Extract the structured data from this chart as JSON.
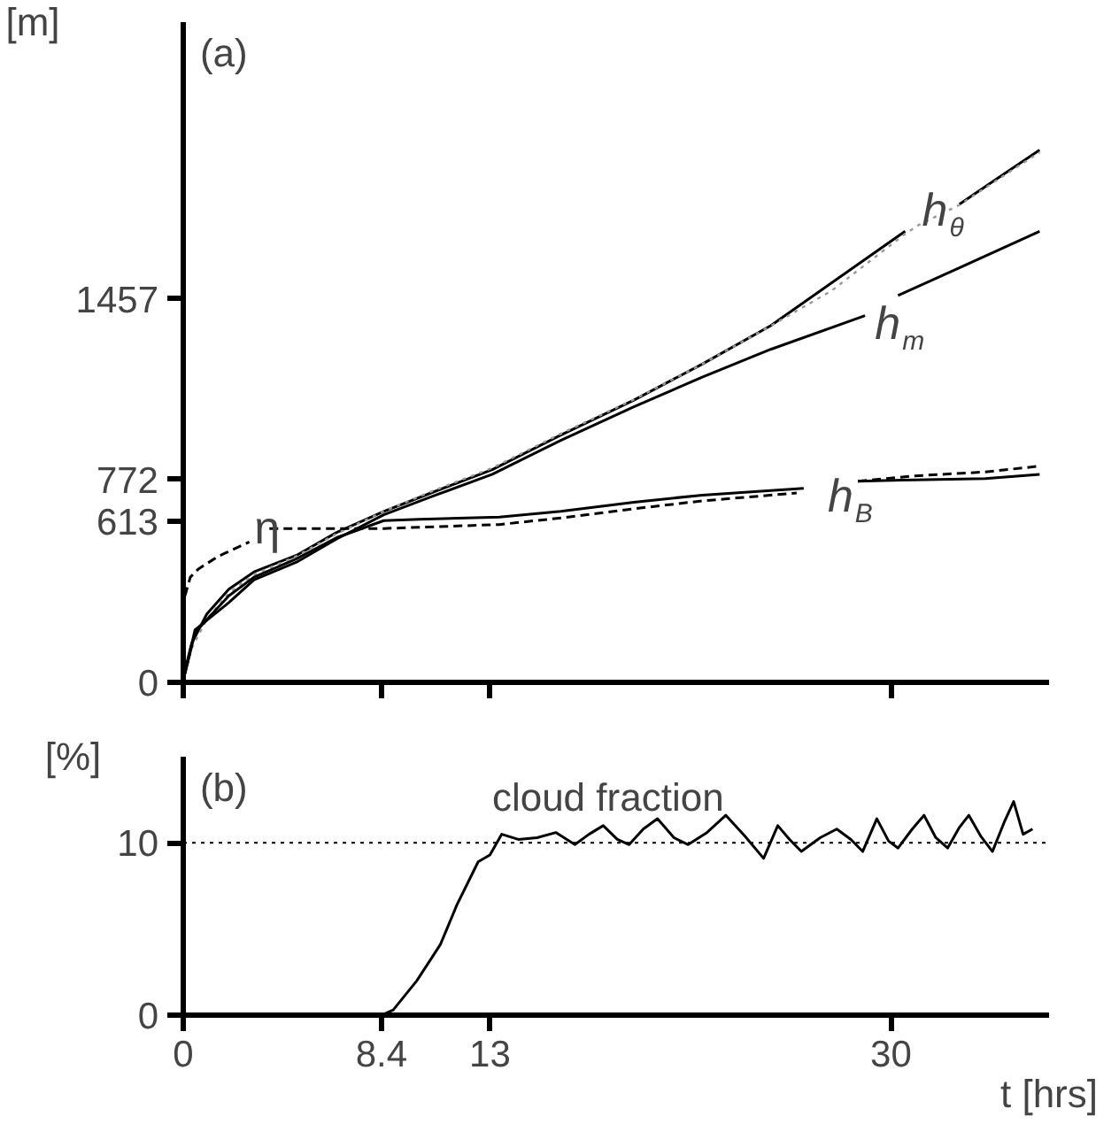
{
  "chart_data": [
    {
      "type": "line",
      "title": "(a)",
      "ylabel": "[m]",
      "xlim": [
        0,
        36.7
      ],
      "ylim": [
        0,
        2510
      ],
      "xticks": [
        {
          "value": 0,
          "label": null
        },
        {
          "value": 8.4,
          "label": null
        },
        {
          "value": 13,
          "label": null
        },
        {
          "value": 30,
          "label": null
        }
      ],
      "yticks": [
        0,
        613,
        772,
        1457
      ],
      "tick_labels": "y",
      "grid": false,
      "series": [
        {
          "color": "#000000",
          "line_style": "solid",
          "x": [
            0,
            0.36,
            1.0,
            1.93,
            3,
            4.8,
            6.5,
            8.5,
            10.5,
            13.1,
            16,
            19.1,
            22,
            24.9,
            27.5,
            30.6,
            31.2,
            32.9,
            34.5,
            36.3
          ],
          "values": [
            20,
            149,
            260,
            354,
            420,
            483,
            570,
            650,
            720,
            809,
            940,
            1073,
            1210,
            1356,
            1520,
            1715,
            null,
            1818,
            1915,
            2024
          ]
        },
        {
          "color": "#999999",
          "line_style": "dotted",
          "x": [
            0,
            0.36,
            1.0,
            1.93,
            3,
            4.8,
            6.5,
            8.5,
            10.5,
            13.1,
            16,
            19.1,
            22,
            24.9,
            27.5,
            30.6,
            31.2,
            32.9,
            34.5,
            36.3
          ],
          "values": [
            0,
            130,
            240,
            340,
            410,
            480,
            565,
            650,
            725,
            815,
            945,
            1075,
            1210,
            1355,
            1490,
            1705,
            1740,
            1815,
            1910,
            2015
          ]
        },
        {
          "color": "#000000",
          "line_style": "solid",
          "x": [
            0.07,
            0.5,
            1.93,
            3,
            4.8,
            6.5,
            8.5,
            10.5,
            13.1,
            16,
            19.1,
            22,
            24.9,
            28.9,
            29.6,
            30.3,
            33,
            36.3
          ],
          "values": [
            33,
            200,
            303,
            390,
            457,
            545,
            637,
            705,
            791,
            920,
            1048,
            1160,
            1266,
            1394,
            null,
            1471,
            1580,
            1715
          ]
        },
        {
          "color": "#000000",
          "line_style": "solid",
          "x": [
            0.07,
            0.5,
            1.93,
            3,
            4.8,
            6.5,
            8.5,
            10,
            13.4,
            16,
            19.1,
            22,
            26.3,
            27.3,
            28.6,
            31,
            34,
            36.3
          ],
          "values": [
            33,
            190,
            329,
            400,
            470,
            550,
            615,
            620,
            628,
            650,
            685,
            712,
            738,
            null,
            765,
            770,
            775,
            791
          ]
        },
        {
          "color": "#000000",
          "line_style": "dashed",
          "x": [
            0.07,
            0.3,
            0.64,
            1.5,
            2.8,
            3.2,
            3.65,
            6,
            8.5,
            13.4,
            16,
            19.1,
            22,
            26,
            27.3,
            28.6,
            31,
            34,
            36.3
          ],
          "values": [
            329,
            400,
            431,
            480,
            534,
            null,
            585,
            585,
            585,
            600,
            625,
            660,
            690,
            720,
            null,
            765,
            785,
            800,
            822
          ]
        }
      ],
      "annotations": [
        {
          "text": "h$_{θ}$",
          "x": 30.6,
          "y": 1715
        },
        {
          "text": "h$_{m}$",
          "x": 28.9,
          "y": 1394
        },
        {
          "text": "h$_{B}$",
          "x": 26.3,
          "y": 738
        },
        {
          "text": "η",
          "x": 2.8,
          "y": 534
        }
      ]
    },
    {
      "type": "line",
      "title": "(b)",
      "ylabel": "[%]",
      "xlabel": "t [hrs]",
      "xlim": [
        0,
        36.7
      ],
      "ylim": [
        0,
        15
      ],
      "xticks": [
        0,
        8.4,
        13,
        30
      ],
      "yticks": [
        0,
        10
      ],
      "grid": false,
      "series": [
        {
          "color": "#000000",
          "line_style": "solid",
          "x": [
            8.4,
            8.9,
            9.9,
            10.9,
            11.6,
            12.5,
            13,
            13.5,
            14.2,
            15,
            15.8,
            16.6,
            17.2,
            17.8,
            18.4,
            18.9,
            19.5,
            20.1,
            20.8,
            21.4,
            22.2,
            23,
            23.8,
            24.6,
            25.2,
            25.7,
            26.2,
            27,
            27.7,
            28.3,
            28.8,
            29.4,
            29.9,
            30.3,
            30.9,
            31.4,
            31.9,
            32.4,
            32.9,
            33.3,
            33.8,
            34.3,
            34.8,
            35.2,
            35.6,
            36
          ],
          "values": [
            0,
            0.3,
            2,
            4.1,
            6.4,
            8.9,
            9.3,
            10.5,
            10.2,
            10.3,
            10.6,
            9.9,
            10.5,
            11,
            10.2,
            9.9,
            10.8,
            11.4,
            10.3,
            9.9,
            10.6,
            11.6,
            10.4,
            9.1,
            11,
            10.2,
            9.5,
            10.3,
            10.8,
            10.2,
            9.5,
            11.4,
            10.1,
            9.7,
            10.8,
            11.6,
            10.3,
            9.7,
            10.9,
            11.6,
            10.4,
            9.5,
            11.2,
            12.4,
            10.5,
            10.8
          ]
        }
      ],
      "ref_lines": [
        {
          "axis": "y",
          "value": 10,
          "line_style": "dotted",
          "color": "#000000"
        }
      ],
      "annotations": [
        {
          "text": "cloud fraction",
          "x": 13.5,
          "y": 10.5
        }
      ]
    }
  ]
}
